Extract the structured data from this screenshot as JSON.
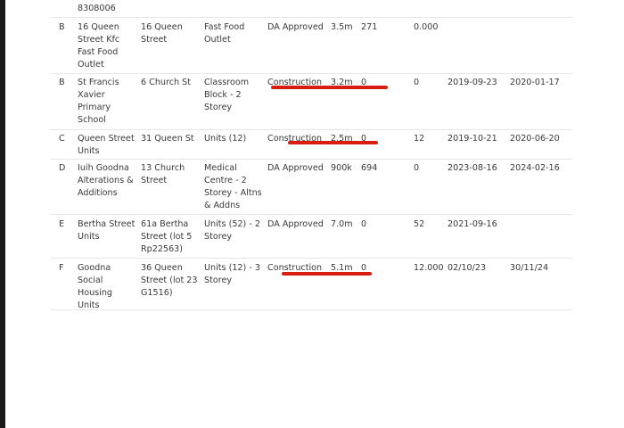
{
  "top_row": {
    "id_fragment": "8308006"
  },
  "rows": [
    {
      "zone": "B",
      "name": [
        "16 Queen",
        "Street Kfc",
        "Fast Food",
        "Outlet"
      ],
      "address": [
        "16 Queen",
        "Street"
      ],
      "type": [
        "Fast Food",
        "Outlet"
      ],
      "status": "DA Approved",
      "value": "3.5m",
      "num": "271",
      "dwellings": "0.000",
      "start": "",
      "end": ""
    },
    {
      "zone": "B",
      "name": [
        "St Francis",
        "Xavier",
        "Primary",
        "School"
      ],
      "address": [
        "6 Church St"
      ],
      "type": [
        "Classroom",
        "Block - 2",
        "Storey"
      ],
      "status": "Construction",
      "value": "3.2m",
      "num": "0",
      "dwellings": "0",
      "start": "2019-09-23",
      "end": "2020-01-17"
    },
    {
      "zone": "C",
      "name": [
        "Queen Street",
        "Units"
      ],
      "address": [
        "31 Queen St"
      ],
      "type": [
        "Units (12)"
      ],
      "status": "Construction",
      "value": "2.5m",
      "num": "0",
      "dwellings": "12",
      "start": "2019-10-21",
      "end": "2020-06-20"
    },
    {
      "zone": "D",
      "name": [
        "Iuih Goodna",
        "Alterations &",
        "Additions"
      ],
      "address": [
        "13 Church",
        "Street"
      ],
      "type": [
        "Medical",
        "Centre - 2",
        "Storey - Altns",
        "& Addns"
      ],
      "status": "DA Approved",
      "value": "900k",
      "num": "694",
      "dwellings": "0",
      "start": "2023-08-16",
      "end": "2024-02-16"
    },
    {
      "zone": "E",
      "name": [
        "Bertha Street",
        "Units"
      ],
      "address": [
        "61a Bertha",
        "Street (lot 5",
        "Rp22563)"
      ],
      "type": [
        "Units (52) - 2",
        "Storey"
      ],
      "status": "DA Approved",
      "value": "7.0m",
      "num": "0",
      "dwellings": "52",
      "start": "2021-09-16",
      "end": ""
    },
    {
      "zone": "F",
      "name": [
        "Goodna",
        "Social",
        "Housing",
        "Units"
      ],
      "address": [
        "36 Queen",
        "Street (lot 23",
        "G1516)"
      ],
      "type": [
        "Units (12) - 3",
        "Storey"
      ],
      "status": "Construction",
      "value": "5.1m",
      "num": "0",
      "dwellings": "12.000",
      "start": "02/10/23",
      "end": "30/11/24"
    }
  ],
  "annotation": {
    "color": "#d61f10",
    "highlighted_rows": [
      1,
      2,
      5
    ]
  }
}
